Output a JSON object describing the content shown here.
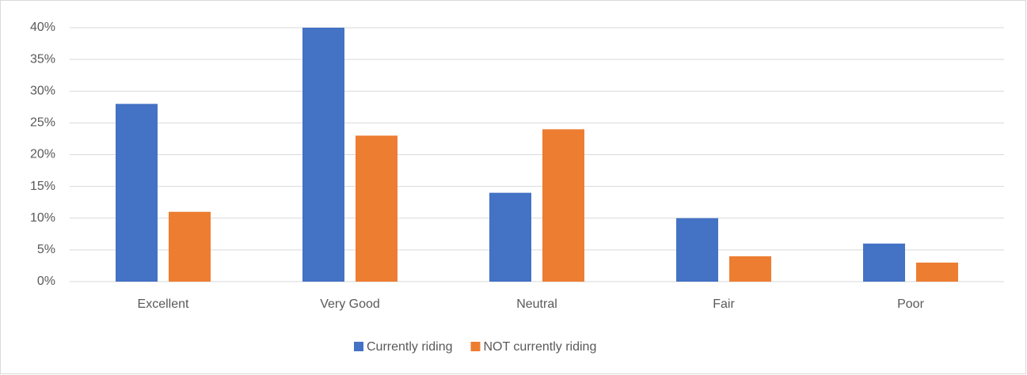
{
  "chart_data": {
    "type": "bar",
    "categories": [
      "Excellent",
      "Very Good",
      "Neutral",
      "Fair",
      "Poor"
    ],
    "series": [
      {
        "name": "Currently riding",
        "color": "#4472c4",
        "values": [
          28,
          40,
          14,
          10,
          6
        ]
      },
      {
        "name": "NOT currently riding",
        "color": "#ed7d31",
        "values": [
          11,
          23,
          24,
          4,
          3
        ]
      }
    ],
    "ylim": [
      0,
      40
    ],
    "yticks": [
      {
        "value": 0,
        "label": "0%"
      },
      {
        "value": 5,
        "label": "5%"
      },
      {
        "value": 10,
        "label": "10%"
      },
      {
        "value": 15,
        "label": "15%"
      },
      {
        "value": 20,
        "label": "20%"
      },
      {
        "value": 25,
        "label": "25%"
      },
      {
        "value": 30,
        "label": "30%"
      },
      {
        "value": 35,
        "label": "35%"
      },
      {
        "value": 40,
        "label": "40%"
      }
    ],
    "grid": true,
    "legend": "bottom"
  }
}
